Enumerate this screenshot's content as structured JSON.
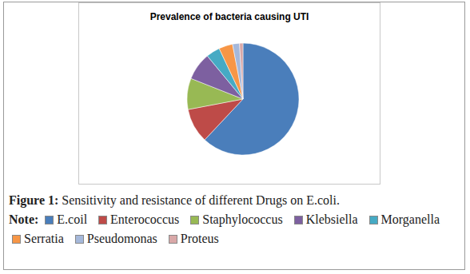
{
  "chart_data": {
    "type": "pie",
    "title": "Prevalence of bacteria causing UTI",
    "caption_label": "Figure 1:",
    "caption": "Sensitivity and resistance of different Drugs on E.coli.",
    "note_label": "Note:",
    "categories": [
      "E.coil",
      "Enterococcus",
      "Staphylococcus",
      "Klebsiella",
      "Morganella",
      "Serratia",
      "Pseudomonas",
      "Proteus"
    ],
    "values": [
      62,
      10,
      9,
      8,
      4,
      4,
      2,
      1
    ],
    "colors": [
      "#4a7ebb",
      "#be4b48",
      "#98b954",
      "#7d60a0",
      "#46aac4",
      "#f79646",
      "#a5b8da",
      "#d9a8a8"
    ],
    "legend": "bottom"
  }
}
